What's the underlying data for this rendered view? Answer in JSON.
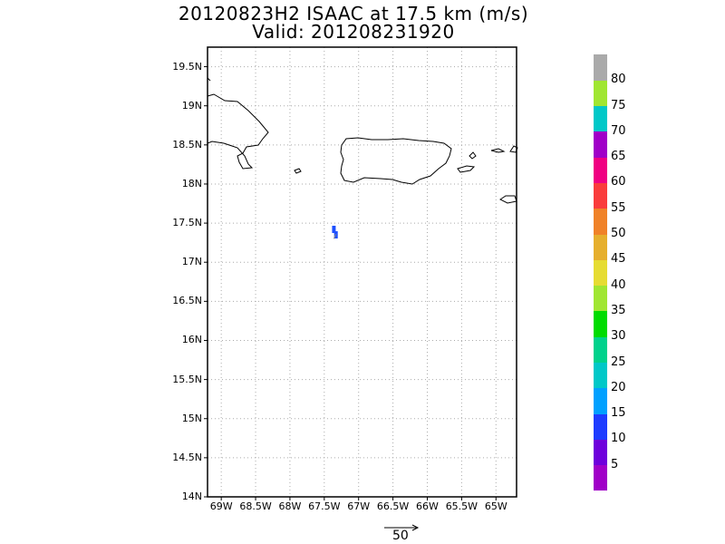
{
  "title": {
    "line1": "20120823H2 ISAAC at 17.5 km (m/s)",
    "line2": "Valid: 201208231920"
  },
  "map": {
    "lat_range": [
      14,
      19.75
    ],
    "lon_range": [
      -69.2,
      -64.7
    ],
    "lat_ticks": [
      "14N",
      "14.5N",
      "15N",
      "15.5N",
      "16N",
      "16.5N",
      "17N",
      "17.5N",
      "18N",
      "18.5N",
      "19N",
      "19.5N"
    ],
    "lon_ticks": [
      "69W",
      "68.5W",
      "68W",
      "67.5W",
      "67W",
      "66.5W",
      "66W",
      "65.5W",
      "65W"
    ],
    "grid": true
  },
  "colorbar": {
    "labels": [
      "5",
      "10",
      "15",
      "20",
      "25",
      "30",
      "35",
      "40",
      "45",
      "50",
      "55",
      "60",
      "65",
      "70",
      "75",
      "80"
    ],
    "colors": [
      "#a000c8",
      "#6e00dc",
      "#1e3cff",
      "#00a0ff",
      "#00c8c8",
      "#00d28c",
      "#00dc00",
      "#a0e632",
      "#e6dc32",
      "#e6af2d",
      "#f08228",
      "#fa3c3c",
      "#f00082",
      "#a000c8",
      "#00c8c8",
      "#a0e632",
      "#aaaaaa"
    ]
  },
  "wind_cells": {
    "color": "#1e50ff",
    "values_ms": [
      15,
      15
    ]
  },
  "vector_legend": {
    "label": "50"
  }
}
